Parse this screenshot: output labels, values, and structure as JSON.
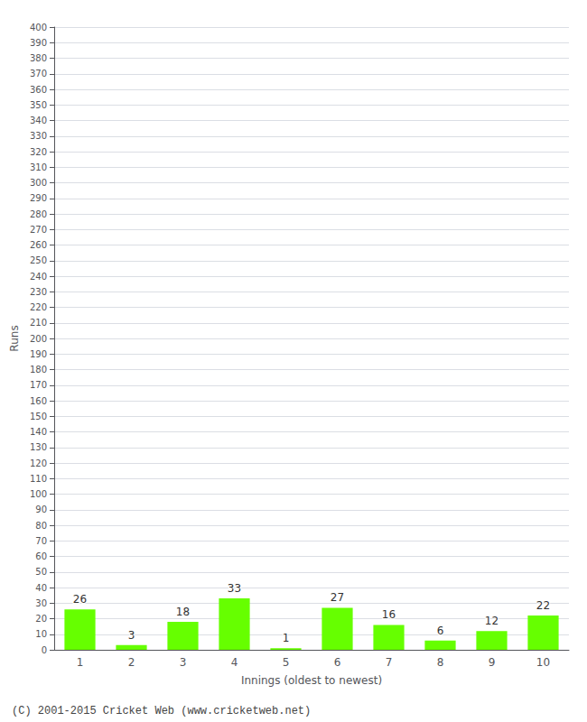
{
  "chart_data": {
    "type": "bar",
    "xlabel": "Innings (oldest to newest)",
    "ylabel": "Runs",
    "categories": [
      1,
      2,
      3,
      4,
      5,
      6,
      7,
      8,
      9,
      10
    ],
    "values": [
      26,
      3,
      18,
      33,
      1,
      27,
      16,
      6,
      12,
      22
    ],
    "color": "#66ff00",
    "ylim": [
      0,
      400
    ],
    "yticks": [
      0,
      10,
      20,
      30,
      40,
      50,
      60,
      70,
      80,
      90,
      100,
      110,
      120,
      130,
      140,
      150,
      160,
      170,
      180,
      190,
      200,
      210,
      220,
      230,
      240,
      250,
      260,
      270,
      280,
      290,
      300,
      310,
      320,
      330,
      340,
      350,
      360,
      370,
      380,
      390,
      400
    ],
    "grid": true,
    "data_labels": true,
    "annotations": [
      "(C) 2001-2015 Cricket Web (www.cricketweb.net)"
    ]
  }
}
